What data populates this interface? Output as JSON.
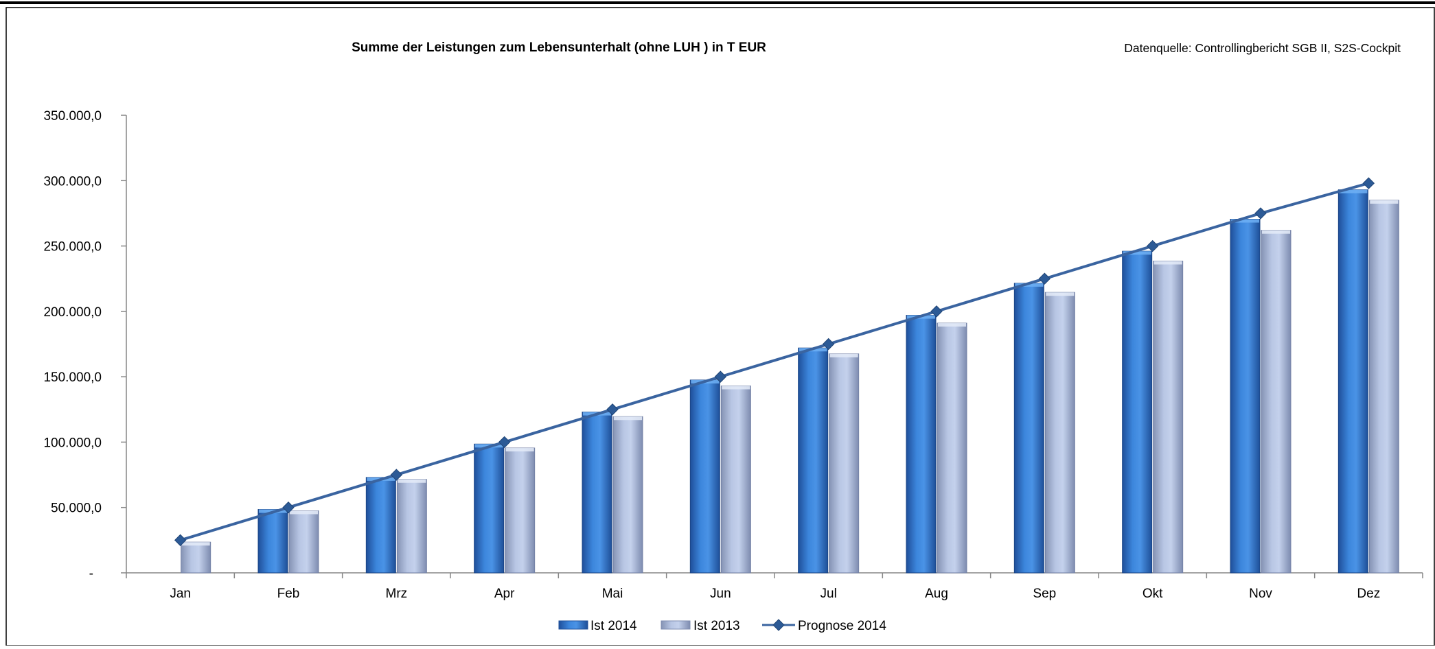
{
  "chart_data": {
    "type": "bar",
    "title": "Summe der Leistungen zum Lebensunterhalt (ohne LUH ) in T EUR",
    "source_note": "Datenquelle: Controllingbericht SGB II, S2S-Cockpit",
    "categories": [
      "Jan",
      "Feb",
      "Mrz",
      "Apr",
      "Mai",
      "Jun",
      "Jul",
      "Aug",
      "Sep",
      "Okt",
      "Nov",
      "Dez"
    ],
    "series": [
      {
        "name": "Ist 2014",
        "type": "bar",
        "color": "#2f6fc9",
        "values": [
          null,
          48500,
          73000,
          98500,
          123000,
          147500,
          172000,
          197000,
          221500,
          246000,
          270500,
          293000
        ]
      },
      {
        "name": "Ist 2013",
        "type": "bar",
        "color": "#a9b7d6",
        "values": [
          23500,
          47500,
          71500,
          95500,
          119500,
          143000,
          167500,
          191000,
          214500,
          238500,
          262000,
          285000
        ]
      },
      {
        "name": "Prognose 2014",
        "type": "line",
        "color": "#3a64a0",
        "values": [
          25000,
          50000,
          75000,
          100000,
          125000,
          150000,
          175000,
          200000,
          225000,
          250000,
          275000,
          298000
        ]
      }
    ],
    "y_ticks": [
      {
        "value": 0,
        "label": "-"
      },
      {
        "value": 50000,
        "label": "50.000,0"
      },
      {
        "value": 100000,
        "label": "100.000,0"
      },
      {
        "value": 150000,
        "label": "150.000,0"
      },
      {
        "value": 200000,
        "label": "200.000,0"
      },
      {
        "value": 250000,
        "label": "250.000,0"
      },
      {
        "value": 300000,
        "label": "300.000,0"
      },
      {
        "value": 350000,
        "label": "350.000,0"
      }
    ],
    "ylim": [
      0,
      350000
    ],
    "grid": false,
    "legend_position": "bottom"
  }
}
